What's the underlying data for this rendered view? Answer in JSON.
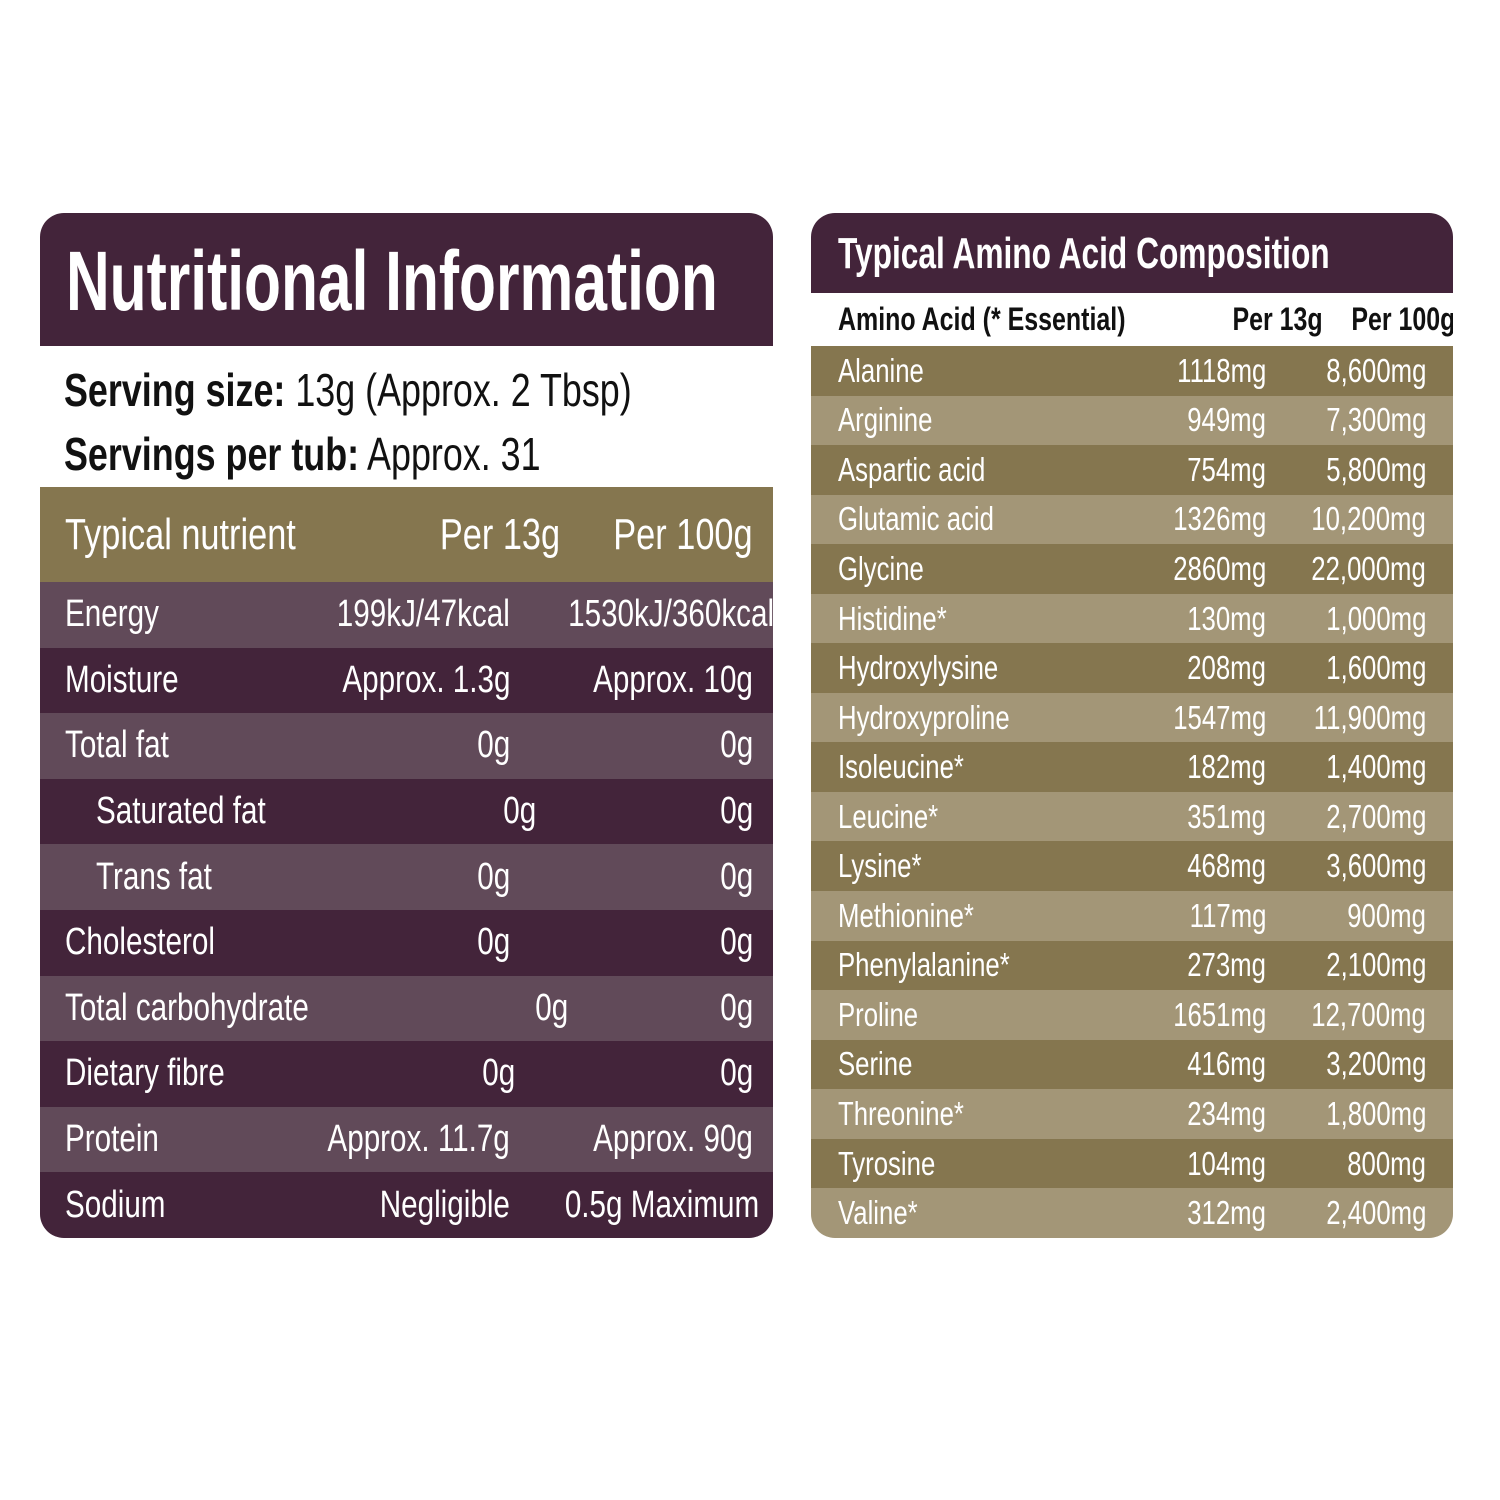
{
  "nutrition": {
    "title": "Nutritional Information",
    "serving_size_label": "Serving size:",
    "serving_size_value": " 13g (Approx. 2 Tbsp)",
    "servings_label": "Servings per tub:",
    "servings_value": " Approx. 31",
    "columns": [
      "Typical nutrient",
      "Per 13g",
      "Per 100g"
    ],
    "rows": [
      {
        "name": "Energy",
        "per13": "199kJ/47kcal",
        "per100": "1530kJ/360kcal"
      },
      {
        "name": "Moisture",
        "per13": "Approx. 1.3g",
        "per100": "Approx. 10g"
      },
      {
        "name": "Total fat",
        "per13": "0g",
        "per100": "0g"
      },
      {
        "name": "Saturated fat",
        "per13": "0g",
        "per100": "0g"
      },
      {
        "name": "Trans fat",
        "per13": "0g",
        "per100": "0g"
      },
      {
        "name": "Cholesterol",
        "per13": "0g",
        "per100": "0g"
      },
      {
        "name": "Total carbohydrate",
        "per13": "0g",
        "per100": "0g"
      },
      {
        "name": "Dietary fibre",
        "per13": "0g",
        "per100": "0g"
      },
      {
        "name": "Protein",
        "per13": "Approx. 11.7g",
        "per100": "Approx. 90g"
      },
      {
        "name": "Sodium",
        "per13": "Negligible",
        "per100": "0.5g Maximum"
      }
    ]
  },
  "amino": {
    "title": "Typical Amino Acid Composition",
    "columns": [
      "Amino Acid (* Essential)",
      "Per 13g",
      "Per 100g"
    ],
    "rows": [
      {
        "name": "Alanine",
        "per13": "1118mg",
        "per100": "8,600mg"
      },
      {
        "name": "Arginine",
        "per13": "949mg",
        "per100": "7,300mg"
      },
      {
        "name": "Aspartic acid",
        "per13": "754mg",
        "per100": "5,800mg"
      },
      {
        "name": "Glutamic acid",
        "per13": "1326mg",
        "per100": "10,200mg"
      },
      {
        "name": "Glycine",
        "per13": "2860mg",
        "per100": "22,000mg"
      },
      {
        "name": "Histidine*",
        "per13": "130mg",
        "per100": "1,000mg"
      },
      {
        "name": "Hydroxylysine",
        "per13": "208mg",
        "per100": "1,600mg"
      },
      {
        "name": "Hydroxyproline",
        "per13": "1547mg",
        "per100": "11,900mg"
      },
      {
        "name": "Isoleucine*",
        "per13": "182mg",
        "per100": "1,400mg"
      },
      {
        "name": "Leucine*",
        "per13": "351mg",
        "per100": "2,700mg"
      },
      {
        "name": "Lysine*",
        "per13": "468mg",
        "per100": "3,600mg"
      },
      {
        "name": "Methionine*",
        "per13": "117mg",
        "per100": "900mg"
      },
      {
        "name": "Phenylalanine*",
        "per13": "273mg",
        "per100": "2,100mg"
      },
      {
        "name": "Proline",
        "per13": "1651mg",
        "per100": "12,700mg"
      },
      {
        "name": "Serine",
        "per13": "416mg",
        "per100": "3,200mg"
      },
      {
        "name": "Threonine*",
        "per13": "234mg",
        "per100": "1,800mg"
      },
      {
        "name": "Tyrosine",
        "per13": "104mg",
        "per100": "800mg"
      },
      {
        "name": "Valine*",
        "per13": "312mg",
        "per100": "2,400mg"
      }
    ]
  },
  "colors": {
    "plum_dark": "#43243a",
    "plum_light": "#614a59",
    "olive_dark": "#85764f",
    "olive_light": "#a39677"
  }
}
